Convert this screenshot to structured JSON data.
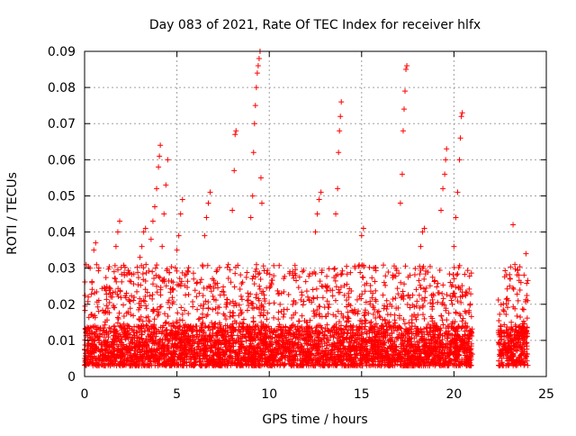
{
  "chart_data": {
    "type": "scatter",
    "title": "Day 083 of 2021, Rate Of TEC Index for receiver hlfx",
    "xlabel": "GPS time / hours",
    "ylabel": "ROTI / TECUs",
    "xlim": [
      0,
      25
    ],
    "ylim": [
      0,
      0.09
    ],
    "xticks": [
      "0",
      "5",
      "10",
      "15",
      "20",
      "25"
    ],
    "yticks": [
      "0",
      "0.01",
      "0.02",
      "0.03",
      "0.04",
      "0.05",
      "0.06",
      "0.07",
      "0.08",
      "0.09"
    ],
    "xtick_values": [
      0,
      5,
      10,
      15,
      20,
      25
    ],
    "ytick_values": [
      0,
      0.01,
      0.02,
      0.03,
      0.04,
      0.05,
      0.06,
      0.07,
      0.08,
      0.09
    ],
    "grid": true,
    "marker": "plus",
    "color": "#ff0000",
    "data_gap_hours": [
      21.0,
      22.4
    ],
    "series": [
      {
        "points": [
          [
            0.2,
            0.022
          ],
          [
            0.3,
            0.03
          ],
          [
            0.4,
            0.026
          ],
          [
            0.5,
            0.035
          ],
          [
            0.6,
            0.037
          ],
          [
            1.5,
            0.022
          ],
          [
            1.6,
            0.029
          ],
          [
            1.7,
            0.036
          ],
          [
            1.8,
            0.04
          ],
          [
            1.9,
            0.043
          ],
          [
            3.0,
            0.033
          ],
          [
            3.1,
            0.036
          ],
          [
            3.2,
            0.04
          ],
          [
            3.3,
            0.041
          ],
          [
            3.6,
            0.038
          ],
          [
            3.7,
            0.043
          ],
          [
            3.8,
            0.047
          ],
          [
            3.9,
            0.052
          ],
          [
            4.0,
            0.058
          ],
          [
            4.05,
            0.061
          ],
          [
            4.1,
            0.064
          ],
          [
            4.2,
            0.036
          ],
          [
            4.3,
            0.045
          ],
          [
            4.4,
            0.053
          ],
          [
            4.5,
            0.06
          ],
          [
            5.0,
            0.035
          ],
          [
            5.1,
            0.039
          ],
          [
            5.2,
            0.045
          ],
          [
            5.3,
            0.049
          ],
          [
            6.5,
            0.039
          ],
          [
            6.6,
            0.044
          ],
          [
            6.7,
            0.048
          ],
          [
            6.8,
            0.051
          ],
          [
            8.0,
            0.046
          ],
          [
            8.1,
            0.057
          ],
          [
            8.15,
            0.067
          ],
          [
            8.2,
            0.068
          ],
          [
            9.0,
            0.044
          ],
          [
            9.1,
            0.05
          ],
          [
            9.15,
            0.062
          ],
          [
            9.2,
            0.07
          ],
          [
            9.25,
            0.075
          ],
          [
            9.3,
            0.08
          ],
          [
            9.35,
            0.084
          ],
          [
            9.4,
            0.086
          ],
          [
            9.45,
            0.088
          ],
          [
            9.5,
            0.09
          ],
          [
            9.55,
            0.055
          ],
          [
            9.6,
            0.048
          ],
          [
            12.5,
            0.04
          ],
          [
            12.6,
            0.045
          ],
          [
            12.7,
            0.049
          ],
          [
            12.8,
            0.051
          ],
          [
            13.6,
            0.045
          ],
          [
            13.7,
            0.052
          ],
          [
            13.75,
            0.062
          ],
          [
            13.8,
            0.068
          ],
          [
            13.85,
            0.072
          ],
          [
            13.9,
            0.076
          ],
          [
            15.0,
            0.039
          ],
          [
            15.1,
            0.041
          ],
          [
            17.1,
            0.048
          ],
          [
            17.2,
            0.056
          ],
          [
            17.25,
            0.068
          ],
          [
            17.3,
            0.074
          ],
          [
            17.35,
            0.079
          ],
          [
            17.4,
            0.085
          ],
          [
            17.45,
            0.086
          ],
          [
            18.2,
            0.036
          ],
          [
            18.3,
            0.04
          ],
          [
            18.4,
            0.041
          ],
          [
            19.3,
            0.046
          ],
          [
            19.4,
            0.052
          ],
          [
            19.5,
            0.056
          ],
          [
            19.55,
            0.06
          ],
          [
            19.6,
            0.063
          ],
          [
            20.0,
            0.036
          ],
          [
            20.1,
            0.044
          ],
          [
            20.2,
            0.051
          ],
          [
            20.3,
            0.06
          ],
          [
            20.35,
            0.066
          ],
          [
            20.4,
            0.072
          ],
          [
            20.45,
            0.073
          ],
          [
            23.2,
            0.042
          ],
          [
            23.3,
            0.031
          ],
          [
            23.9,
            0.034
          ]
        ]
      }
    ]
  }
}
